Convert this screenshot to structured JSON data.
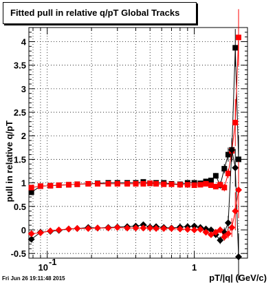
{
  "page": {
    "title": "Fitted pull in relative q/pT  Global Tracks",
    "footer": "Fri Jun 26 19:11:48 2015"
  },
  "colors": {
    "series_black": "#000000",
    "series_red": "#ff0000",
    "grid": "#000000",
    "background": "#ffffff"
  },
  "chart_data": {
    "type": "scatter",
    "title": "Fitted pull in relative q/pT  Global Tracks",
    "xlabel": "pT/|q| (GeV/c)",
    "ylabel": "pull in relative q/pT",
    "xscale": "log",
    "xlim": [
      0.075,
      2.3
    ],
    "ylim": [
      -0.6,
      4.3
    ],
    "grid": true,
    "yticks": [
      {
        "v": -0.5,
        "label": "-0.5"
      },
      {
        "v": 0,
        "label": "0"
      },
      {
        "v": 0.5,
        "label": "0.5"
      },
      {
        "v": 1,
        "label": "1"
      },
      {
        "v": 1.5,
        "label": "1.5"
      },
      {
        "v": 2,
        "label": "2"
      },
      {
        "v": 2.5,
        "label": "2.5"
      },
      {
        "v": 3,
        "label": "3"
      },
      {
        "v": 3.5,
        "label": "3.5"
      },
      {
        "v": 4,
        "label": "4"
      }
    ],
    "xticks": [
      {
        "v": 0.1,
        "label": "10^-1"
      },
      {
        "v": 1,
        "label": "1"
      }
    ],
    "series": [
      {
        "marker": "square",
        "color": "black",
        "points": [
          [
            0.078,
            0.8,
            0.06
          ],
          [
            0.09,
            0.93,
            0.02
          ],
          [
            0.105,
            0.94,
            0.02
          ],
          [
            0.12,
            0.95,
            0.02
          ],
          [
            0.14,
            0.96,
            0.02
          ],
          [
            0.16,
            0.97,
            0.02
          ],
          [
            0.19,
            0.98,
            0.02
          ],
          [
            0.22,
            0.99,
            0.02
          ],
          [
            0.26,
            1.0,
            0.02
          ],
          [
            0.3,
            1.0,
            0.02
          ],
          [
            0.35,
            1.0,
            0.02
          ],
          [
            0.4,
            1.0,
            0.02
          ],
          [
            0.45,
            1.02,
            0.02
          ],
          [
            0.5,
            0.99,
            0.02
          ],
          [
            0.55,
            1.0,
            0.02
          ],
          [
            0.62,
            1.0,
            0.02
          ],
          [
            0.7,
            0.98,
            0.02
          ],
          [
            0.8,
            0.97,
            0.02
          ],
          [
            0.9,
            1.0,
            0.02
          ],
          [
            1.0,
            1.0,
            0.03
          ],
          [
            1.1,
            0.99,
            0.03
          ],
          [
            1.2,
            1.03,
            0.04
          ],
          [
            1.3,
            1.05,
            0.05
          ],
          [
            1.4,
            1.15,
            0.06
          ],
          [
            1.5,
            0.95,
            0.08
          ],
          [
            1.6,
            1.3,
            0.1
          ],
          [
            1.7,
            1.6,
            0.15
          ],
          [
            1.8,
            1.7,
            0.2
          ],
          [
            1.9,
            3.87,
            0.4
          ],
          [
            2.0,
            1.5,
            0.5
          ]
        ]
      },
      {
        "marker": "square",
        "color": "red",
        "points": [
          [
            0.078,
            0.9,
            0.04
          ],
          [
            0.09,
            0.93,
            0.02
          ],
          [
            0.105,
            0.94,
            0.02
          ],
          [
            0.12,
            0.95,
            0.02
          ],
          [
            0.14,
            0.96,
            0.02
          ],
          [
            0.16,
            0.97,
            0.02
          ],
          [
            0.19,
            0.98,
            0.02
          ],
          [
            0.22,
            0.98,
            0.02
          ],
          [
            0.26,
            0.98,
            0.02
          ],
          [
            0.3,
            0.98,
            0.02
          ],
          [
            0.35,
            0.98,
            0.02
          ],
          [
            0.4,
            0.98,
            0.02
          ],
          [
            0.45,
            0.98,
            0.02
          ],
          [
            0.5,
            0.99,
            0.02
          ],
          [
            0.55,
            0.98,
            0.02
          ],
          [
            0.62,
            0.97,
            0.02
          ],
          [
            0.7,
            0.97,
            0.02
          ],
          [
            0.8,
            0.96,
            0.02
          ],
          [
            0.9,
            0.96,
            0.03
          ],
          [
            1.0,
            0.95,
            0.03
          ],
          [
            1.1,
            0.96,
            0.03
          ],
          [
            1.2,
            0.98,
            0.04
          ],
          [
            1.3,
            0.95,
            0.05
          ],
          [
            1.4,
            0.92,
            0.05
          ],
          [
            1.5,
            0.96,
            0.06
          ],
          [
            1.6,
            0.9,
            0.08
          ],
          [
            1.7,
            1.2,
            0.1
          ],
          [
            1.8,
            1.68,
            0.2
          ],
          [
            1.9,
            2.28,
            0.5
          ],
          [
            2.0,
            4.09,
            0.6
          ]
        ]
      },
      {
        "marker": "diamond",
        "color": "black",
        "points": [
          [
            0.078,
            -0.2,
            0.04
          ],
          [
            0.09,
            -0.05,
            0.02
          ],
          [
            0.105,
            -0.03,
            0.02
          ],
          [
            0.12,
            -0.01,
            0.02
          ],
          [
            0.14,
            0.02,
            0.02
          ],
          [
            0.16,
            0.03,
            0.02
          ],
          [
            0.19,
            0.05,
            0.02
          ],
          [
            0.22,
            0.04,
            0.02
          ],
          [
            0.26,
            0.05,
            0.02
          ],
          [
            0.3,
            0.06,
            0.02
          ],
          [
            0.35,
            0.07,
            0.02
          ],
          [
            0.4,
            0.08,
            0.02
          ],
          [
            0.45,
            0.11,
            0.02
          ],
          [
            0.5,
            0.06,
            0.02
          ],
          [
            0.55,
            0.07,
            0.02
          ],
          [
            0.62,
            0.05,
            0.02
          ],
          [
            0.7,
            0.04,
            0.02
          ],
          [
            0.8,
            0.06,
            0.02
          ],
          [
            0.9,
            0.07,
            0.03
          ],
          [
            1.0,
            0.08,
            0.03
          ],
          [
            1.1,
            0.05,
            0.03
          ],
          [
            1.2,
            0.02,
            0.04
          ],
          [
            1.3,
            0.0,
            0.05
          ],
          [
            1.4,
            -0.1,
            0.06
          ],
          [
            1.5,
            -0.22,
            0.08
          ],
          [
            1.6,
            -0.05,
            0.1
          ],
          [
            1.7,
            0.15,
            0.15
          ],
          [
            1.8,
            1.7,
            0.25
          ],
          [
            1.9,
            1.32,
            0.4
          ],
          [
            2.0,
            -0.57,
            0.5
          ]
        ]
      },
      {
        "marker": "diamond",
        "color": "red",
        "points": [
          [
            0.078,
            -0.08,
            0.03
          ],
          [
            0.09,
            -0.06,
            0.02
          ],
          [
            0.105,
            -0.02,
            0.02
          ],
          [
            0.12,
            0.0,
            0.02
          ],
          [
            0.14,
            0.02,
            0.02
          ],
          [
            0.16,
            0.03,
            0.02
          ],
          [
            0.19,
            0.03,
            0.02
          ],
          [
            0.22,
            0.04,
            0.02
          ],
          [
            0.26,
            0.04,
            0.02
          ],
          [
            0.3,
            0.05,
            0.02
          ],
          [
            0.35,
            0.04,
            0.02
          ],
          [
            0.4,
            0.04,
            0.02
          ],
          [
            0.45,
            0.04,
            0.02
          ],
          [
            0.5,
            0.04,
            0.02
          ],
          [
            0.55,
            0.03,
            0.02
          ],
          [
            0.62,
            0.03,
            0.02
          ],
          [
            0.7,
            0.03,
            0.02
          ],
          [
            0.8,
            0.02,
            0.02
          ],
          [
            0.9,
            0.01,
            0.03
          ],
          [
            1.0,
            0.0,
            0.03
          ],
          [
            1.1,
            0.01,
            0.03
          ],
          [
            1.2,
            -0.05,
            0.04
          ],
          [
            1.3,
            -0.1,
            0.05
          ],
          [
            1.4,
            -0.05,
            0.06
          ],
          [
            1.5,
            0.0,
            0.07
          ],
          [
            1.6,
            -0.15,
            0.08
          ],
          [
            1.7,
            -0.08,
            0.1
          ],
          [
            1.8,
            0.05,
            0.2
          ],
          [
            1.9,
            0.4,
            0.4
          ],
          [
            2.0,
            0.85,
            0.6
          ]
        ]
      }
    ]
  }
}
